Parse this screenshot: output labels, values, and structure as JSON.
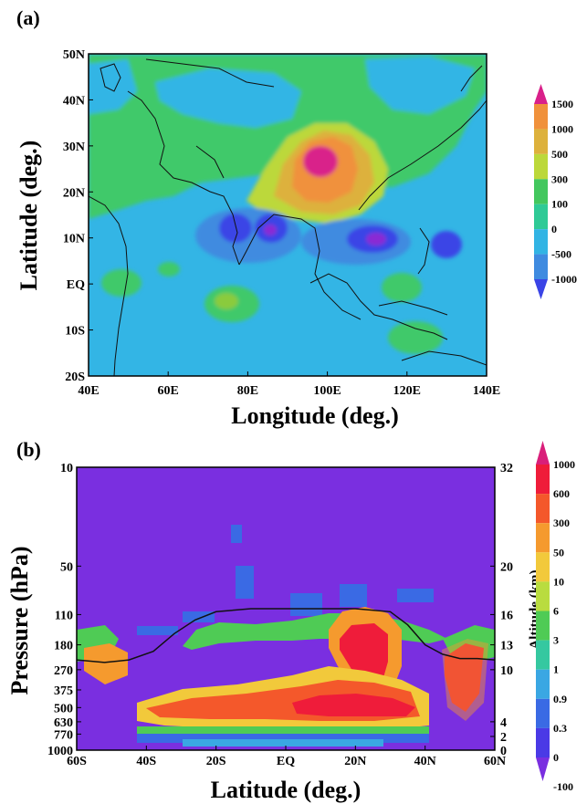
{
  "chart_data": [
    {
      "type": "heatmap",
      "panel_label": "(a)",
      "xlabel": "Longitude (deg.)",
      "ylabel": "Latitude (deg.)",
      "xlim": [
        40,
        140
      ],
      "ylim": [
        -20,
        50
      ],
      "x_ticks": [
        "40E",
        "60E",
        "80E",
        "100E",
        "120E",
        "140E"
      ],
      "y_ticks": [
        "50N",
        "40N",
        "30N",
        "20N",
        "10N",
        "EQ",
        "10S",
        "20S"
      ],
      "colorbar": {
        "labels": [
          "1500",
          "1000",
          "500",
          "300",
          "100",
          "0",
          "-500",
          "-1000"
        ],
        "colors": [
          "#d9208a",
          "#f0913c",
          "#ddb13c",
          "#bcd83a",
          "#43c75e",
          "#2fca96",
          "#32b4e4",
          "#3f8be0",
          "#3a44e6"
        ]
      },
      "background_color": "#33b5e5",
      "features": [
        {
          "label": "max",
          "lon": 98,
          "lat": 26,
          "value": 1500
        },
        {
          "label": "min",
          "lon": 84,
          "lat": 12,
          "value": -1000
        },
        {
          "label": "min",
          "lon": 111,
          "lat": 10,
          "value": -1000
        },
        {
          "label": "min",
          "lon": 131,
          "lat": 10,
          "value": -500
        }
      ],
      "grid": false
    },
    {
      "type": "heatmap",
      "panel_label": "(b)",
      "xlabel": "Latitude (deg.)",
      "ylabel": "Pressure (hPa)",
      "y2label": "Altitude (km)",
      "xlim": [
        -60,
        60
      ],
      "x_ticks": [
        "60S",
        "40S",
        "20S",
        "EQ",
        "20N",
        "40N",
        "60N"
      ],
      "pressure_ticks": [
        "10",
        "50",
        "110",
        "180",
        "270",
        "375",
        "500",
        "630",
        "770",
        "1000"
      ],
      "altitude_ticks": [
        "32",
        "20",
        "16",
        "13",
        "10",
        "4",
        "2",
        "0"
      ],
      "colorbar": {
        "labels": [
          "1000",
          "600",
          "300",
          "50",
          "10",
          "6",
          "3",
          "1",
          "0.9",
          "0.3",
          "0",
          "-100"
        ],
        "colors": [
          "#d91f7a",
          "#ef1c3a",
          "#f4582b",
          "#f59a2e",
          "#f2c93b",
          "#b9dc3f",
          "#4fcb55",
          "#35c8a0",
          "#3aa7e3",
          "#3a6ae4",
          "#4a3ae6",
          "#7a2fe0"
        ]
      },
      "background_color": "#7a2fe0",
      "tropopause_line": {
        "lat": [
          -60,
          -52,
          -45,
          -38,
          -32,
          -26,
          -20,
          -10,
          0,
          10,
          20,
          30,
          35,
          40,
          45,
          50,
          55,
          60
        ],
        "pressure": [
          230,
          240,
          230,
          200,
          150,
          120,
          105,
          100,
          100,
          100,
          100,
          105,
          130,
          180,
          210,
          225,
          225,
          230
        ]
      },
      "grid": false
    }
  ]
}
